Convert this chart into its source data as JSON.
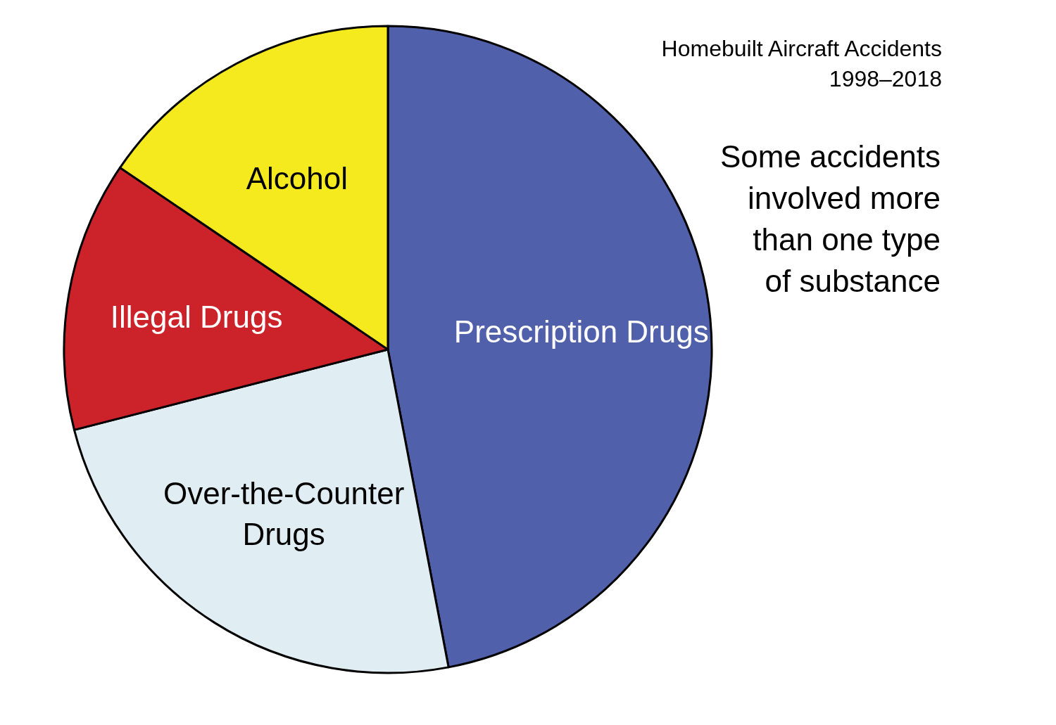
{
  "chart_data": {
    "type": "pie",
    "title": "Homebuilt Aircraft Accidents",
    "subtitle": "1998–2018",
    "categories": [
      "Prescription Drugs",
      "Over-the-Counter Drugs",
      "Illegal Drugs",
      "Alcohol"
    ],
    "values": [
      47,
      24,
      13.5,
      15.5
    ],
    "colors": [
      "#5160aa",
      "#e0eef3",
      "#cc2229",
      "#f5ea1e"
    ],
    "annotations": [
      "Some accidents involved more than one type of substance"
    ]
  }
}
